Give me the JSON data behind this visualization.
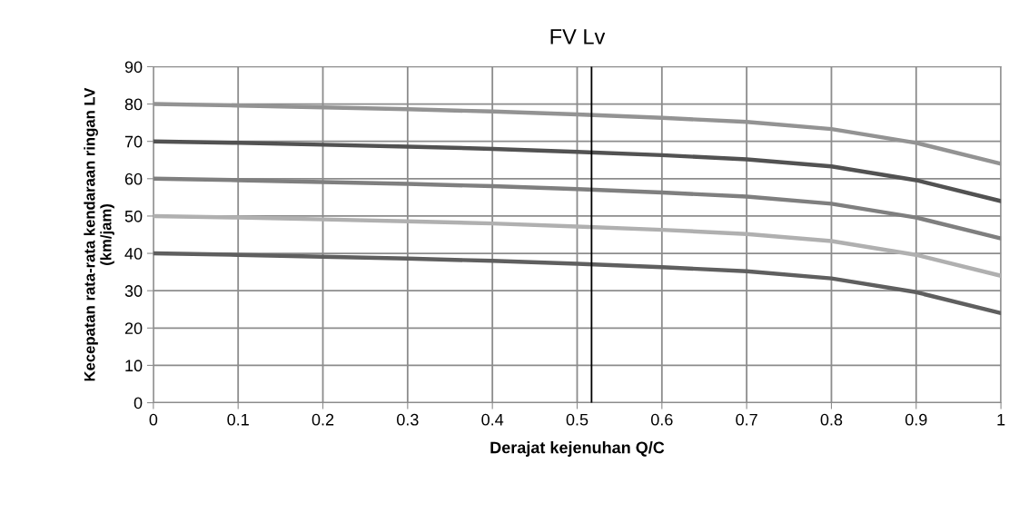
{
  "chart_data": {
    "type": "line",
    "title": "FV Lv",
    "xlabel": "Derajat kejenuhan Q/C",
    "ylabel": "Kecepatan rata-rata kendaraan ringan LV\n(km/jam)",
    "x": [
      0,
      0.1,
      0.2,
      0.3,
      0.4,
      0.5,
      0.6,
      0.7,
      0.8,
      0.9,
      1
    ],
    "series": [
      {
        "color": "#939393",
        "values": [
          80,
          79.6,
          79.1,
          78.6,
          78,
          77.2,
          76.3,
          75.2,
          73.3,
          69.6,
          64
        ]
      },
      {
        "color": "#525252",
        "values": [
          70,
          69.6,
          69.1,
          68.6,
          68,
          67.2,
          66.3,
          65.2,
          63.3,
          59.6,
          54
        ]
      },
      {
        "color": "#7f7f7f",
        "values": [
          60,
          59.6,
          59.1,
          58.6,
          58,
          57.2,
          56.3,
          55.2,
          53.3,
          49.6,
          44
        ]
      },
      {
        "color": "#b0b0b0",
        "values": [
          50,
          49.6,
          49.1,
          48.6,
          48,
          47.2,
          46.3,
          45.2,
          43.3,
          39.6,
          34
        ]
      },
      {
        "color": "#5f5f5f",
        "values": [
          40,
          39.6,
          39.1,
          38.6,
          38,
          37.2,
          36.3,
          35.2,
          33.3,
          29.6,
          24
        ]
      }
    ],
    "xlim": [
      0,
      1
    ],
    "xticks": [
      0,
      0.1,
      0.2,
      0.3,
      0.4,
      0.5,
      0.6,
      0.7,
      0.8,
      0.9,
      1
    ],
    "ylim": [
      0,
      90
    ],
    "yticks": [
      0,
      10,
      20,
      30,
      40,
      50,
      60,
      70,
      80,
      90
    ],
    "ref_lines": [
      {
        "axis": "x",
        "value": 0.517,
        "color": "#000000",
        "line_style": "solid"
      }
    ],
    "grid": true,
    "marker": "none",
    "line_style": "solid"
  }
}
